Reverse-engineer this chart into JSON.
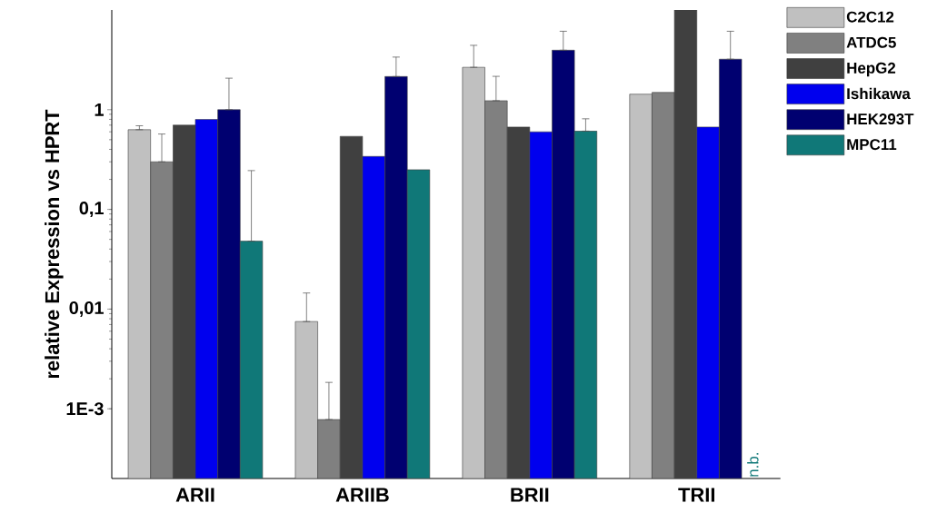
{
  "chart_data": {
    "type": "bar",
    "ylabel": "relative Expression vs HPRT",
    "categories": [
      "ARII",
      "ARIIB",
      "BRII",
      "TRII"
    ],
    "series": [
      {
        "name": "C2C12",
        "color": "#c0c0c0",
        "values": [
          0.63,
          0.0075,
          2.66,
          1.43
        ],
        "errors": [
          [
            0.63,
            0.69
          ],
          [
            0.0075,
            0.0145
          ],
          [
            2.66,
            4.42
          ],
          null
        ]
      },
      {
        "name": "ATDC5",
        "color": "#808080",
        "values": [
          0.3,
          0.00078,
          1.23,
          1.49
        ],
        "errors": [
          [
            0.3,
            0.57
          ],
          [
            0.00078,
            0.00184
          ],
          [
            1.23,
            2.16
          ],
          null
        ]
      },
      {
        "name": "HepG2",
        "color": "#404040",
        "values": [
          0.7,
          0.54,
          0.67,
          10
        ],
        "errors": [
          null,
          null,
          null,
          null
        ]
      },
      {
        "name": "Ishikawa",
        "color": "#0000ee",
        "values": [
          0.8,
          0.34,
          0.6,
          0.67
        ],
        "errors": [
          null,
          null,
          null,
          null
        ]
      },
      {
        "name": "HEK293T",
        "color": "#000070",
        "values": [
          1.0,
          2.15,
          3.95,
          3.21
        ],
        "errors": [
          [
            1.0,
            2.07
          ],
          [
            2.15,
            3.37
          ],
          [
            3.95,
            6.12
          ],
          [
            3.21,
            6.12
          ]
        ]
      },
      {
        "name": "MPC11",
        "color": "#107878",
        "values": [
          0.048,
          0.25,
          0.61,
          null
        ],
        "errors": [
          [
            0.048,
            0.245
          ],
          null,
          [
            0.61,
            0.81
          ],
          null
        ]
      }
    ],
    "annotations": [
      "n.b."
    ],
    "log": "y",
    "ylim": [
      0.0002,
      10
    ],
    "yticks": [
      {
        "value": 0.001,
        "label": "1E-3"
      },
      {
        "value": 0.01,
        "label": "0,01"
      },
      {
        "value": 0.1,
        "label": "0,1"
      },
      1
    ],
    "grid": false,
    "legend": "top right"
  }
}
